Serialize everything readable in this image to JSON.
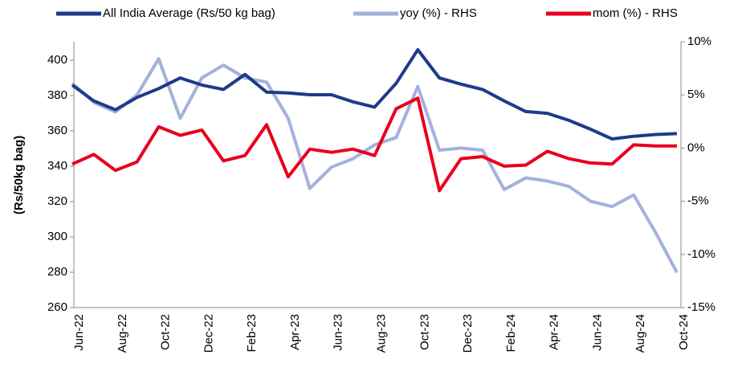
{
  "chart_data": {
    "type": "line",
    "y_label": "(Rs/50kg bag)",
    "categories": [
      "Jun-22",
      null,
      "Aug-22",
      null,
      "Oct-22",
      null,
      "Dec-22",
      null,
      "Feb-23",
      null,
      "Apr-23",
      null,
      "Jun-23",
      null,
      "Aug-23",
      null,
      "Oct-23",
      null,
      "Dec-23",
      null,
      "Feb-24",
      null,
      "Apr-24",
      null,
      "Jun-24",
      null,
      "Aug-24",
      null,
      "Oct-24"
    ],
    "series": [
      {
        "name": "All India Average (Rs/50 kg bag)",
        "color": "#1f3a8a",
        "values": [
          386,
          377,
          372,
          379,
          384,
          390,
          386,
          383.5,
          392,
          382,
          381.5,
          380.5,
          380.5,
          376.5,
          373.5,
          387,
          406,
          390,
          386.5,
          383.5,
          377,
          371,
          370,
          366,
          361,
          355.5,
          357,
          358,
          358.5
        ]
      },
      {
        "name": "yoy (%) - RHS",
        "color": "#a3b2dc",
        "axis": "y2",
        "values": [
          6.1,
          4.3,
          3.4,
          5.0,
          8.4,
          2.8,
          6.6,
          7.8,
          6.6,
          6.2,
          2.8,
          -3.8,
          -1.8,
          -1.0,
          0.3,
          1.0,
          5.8,
          -0.2,
          0.0,
          -0.2,
          -3.9,
          -2.8,
          -3.1,
          -3.6,
          -5.0,
          -5.5,
          -4.4,
          -7.9,
          -11.7
        ]
      },
      {
        "name": "mom (%) - RHS",
        "color": "#e8001c",
        "axis": "y2",
        "values": [
          -1.5,
          -0.6,
          -2.1,
          -1.3,
          2.0,
          1.2,
          1.7,
          -1.2,
          -0.7,
          2.2,
          -2.7,
          -0.1,
          -0.4,
          -0.1,
          -0.7,
          3.7,
          4.7,
          -4.0,
          -1.0,
          -0.8,
          -1.7,
          -1.6,
          -0.3,
          -1.0,
          -1.4,
          -1.5,
          0.3,
          0.2,
          0.2
        ]
      }
    ],
    "ylim": [
      260,
      410.5
    ],
    "yticks": [
      260,
      280,
      300,
      320,
      340,
      360,
      380,
      400
    ],
    "y2lim": [
      -15,
      10
    ],
    "y2ticks": [
      {
        "value": -15,
        "label": "-15%"
      },
      {
        "value": -10,
        "label": "-10%"
      },
      {
        "value": -5,
        "label": "-5%"
      },
      {
        "value": 0,
        "label": "0%"
      },
      {
        "value": 5,
        "label": "5%"
      },
      {
        "value": 10,
        "label": "10%"
      }
    ],
    "legend": "top"
  }
}
